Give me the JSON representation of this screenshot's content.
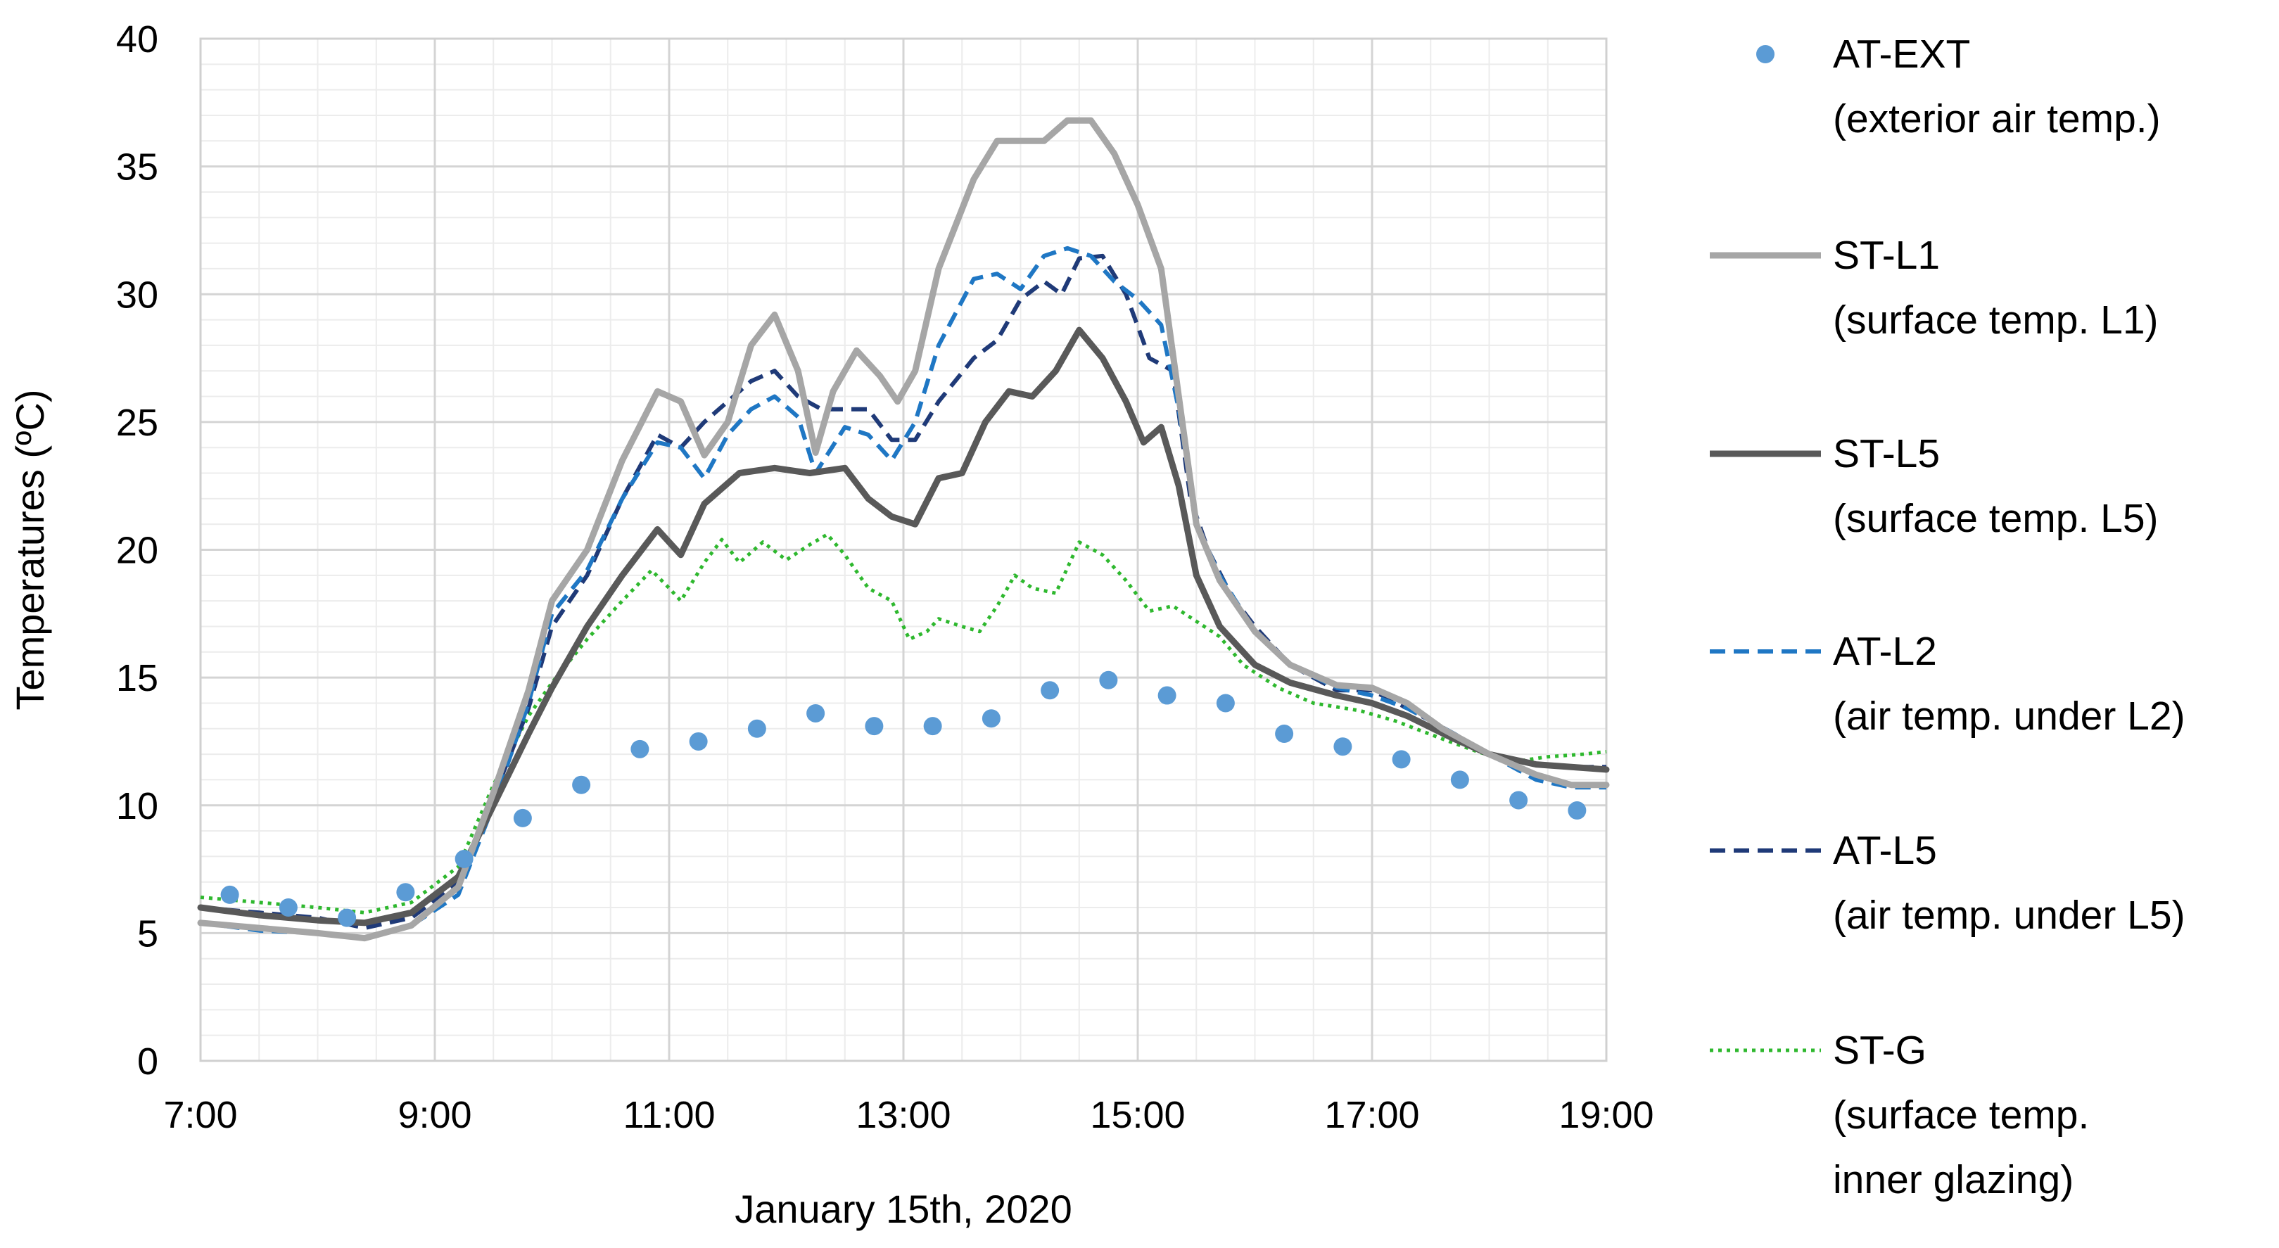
{
  "chart_data": {
    "type": "line",
    "xlabel": "January 15th, 2020",
    "ylabel": "Temperatures (ºC)",
    "xlim": [
      7,
      19
    ],
    "ylim": [
      0,
      40
    ],
    "x_ticks": [
      7,
      9,
      11,
      13,
      15,
      17,
      19
    ],
    "x_tick_labels": [
      "7:00",
      "9:00",
      "11:00",
      "13:00",
      "15:00",
      "17:00",
      "19:00"
    ],
    "y_ticks": [
      0,
      5,
      10,
      15,
      20,
      25,
      30,
      35,
      40
    ],
    "y_tick_labels": [
      "0",
      "5",
      "10",
      "15",
      "20",
      "25",
      "30",
      "35",
      "40"
    ],
    "grid": true,
    "legend_position": "right",
    "series": [
      {
        "name": "AT-EXT",
        "legend_lines": [
          "AT-EXT",
          "(exterior air temp.)"
        ],
        "style": "dots",
        "color": "#5b9bd5",
        "points": [
          [
            7.25,
            6.5
          ],
          [
            7.75,
            6.0
          ],
          [
            8.25,
            5.6
          ],
          [
            8.75,
            6.6
          ],
          [
            9.25,
            7.9
          ],
          [
            9.75,
            9.5
          ],
          [
            10.25,
            10.8
          ],
          [
            10.75,
            12.2
          ],
          [
            11.25,
            12.5
          ],
          [
            11.75,
            13.0
          ],
          [
            12.25,
            13.6
          ],
          [
            12.75,
            13.1
          ],
          [
            13.25,
            13.1
          ],
          [
            13.75,
            13.4
          ],
          [
            14.25,
            14.5
          ],
          [
            14.75,
            14.9
          ],
          [
            15.25,
            14.3
          ],
          [
            15.75,
            14.0
          ],
          [
            16.25,
            12.8
          ],
          [
            16.75,
            12.3
          ],
          [
            17.25,
            11.8
          ],
          [
            17.75,
            11.0
          ],
          [
            18.25,
            10.2
          ],
          [
            18.75,
            9.8
          ]
        ]
      },
      {
        "name": "ST-L1",
        "legend_lines": [
          "ST-L1",
          "(surface temp. L1)"
        ],
        "style": "solid",
        "color": "#a6a6a6",
        "points": [
          [
            7,
            5.4
          ],
          [
            7.5,
            5.2
          ],
          [
            8,
            5.0
          ],
          [
            8.4,
            4.8
          ],
          [
            8.8,
            5.3
          ],
          [
            9.2,
            6.8
          ],
          [
            9.5,
            10.5
          ],
          [
            9.8,
            14.5
          ],
          [
            10,
            18.0
          ],
          [
            10.3,
            20.0
          ],
          [
            10.6,
            23.5
          ],
          [
            10.9,
            26.2
          ],
          [
            11.1,
            25.8
          ],
          [
            11.3,
            23.7
          ],
          [
            11.5,
            25.0
          ],
          [
            11.7,
            28.0
          ],
          [
            11.9,
            29.2
          ],
          [
            12.1,
            27.0
          ],
          [
            12.25,
            23.8
          ],
          [
            12.4,
            26.2
          ],
          [
            12.6,
            27.8
          ],
          [
            12.8,
            26.8
          ],
          [
            12.95,
            25.8
          ],
          [
            13.1,
            27.0
          ],
          [
            13.3,
            31.0
          ],
          [
            13.6,
            34.5
          ],
          [
            13.8,
            36.0
          ],
          [
            14.0,
            36.0
          ],
          [
            14.2,
            36.0
          ],
          [
            14.4,
            36.8
          ],
          [
            14.6,
            36.8
          ],
          [
            14.8,
            35.5
          ],
          [
            15.0,
            33.5
          ],
          [
            15.2,
            31.0
          ],
          [
            15.35,
            26.0
          ],
          [
            15.5,
            21.0
          ],
          [
            15.7,
            18.8
          ],
          [
            16.0,
            16.8
          ],
          [
            16.3,
            15.5
          ],
          [
            16.7,
            14.7
          ],
          [
            17.0,
            14.6
          ],
          [
            17.3,
            14.0
          ],
          [
            17.6,
            13.0
          ],
          [
            18.0,
            12.0
          ],
          [
            18.4,
            11.2
          ],
          [
            18.7,
            10.8
          ],
          [
            19,
            10.8
          ]
        ]
      },
      {
        "name": "ST-L5",
        "legend_lines": [
          "ST-L5",
          "(surface temp. L5)"
        ],
        "style": "solid",
        "color": "#595959",
        "points": [
          [
            7,
            6.0
          ],
          [
            7.5,
            5.7
          ],
          [
            8,
            5.5
          ],
          [
            8.4,
            5.4
          ],
          [
            8.8,
            5.8
          ],
          [
            9.2,
            7.2
          ],
          [
            9.5,
            10.0
          ],
          [
            9.8,
            12.8
          ],
          [
            10,
            14.6
          ],
          [
            10.3,
            17.0
          ],
          [
            10.6,
            19.0
          ],
          [
            10.9,
            20.8
          ],
          [
            11.1,
            19.8
          ],
          [
            11.3,
            21.8
          ],
          [
            11.6,
            23.0
          ],
          [
            11.9,
            23.2
          ],
          [
            12.2,
            23.0
          ],
          [
            12.5,
            23.2
          ],
          [
            12.7,
            22.0
          ],
          [
            12.9,
            21.3
          ],
          [
            13.1,
            21.0
          ],
          [
            13.3,
            22.8
          ],
          [
            13.5,
            23.0
          ],
          [
            13.7,
            25.0
          ],
          [
            13.9,
            26.2
          ],
          [
            14.1,
            26.0
          ],
          [
            14.3,
            27.0
          ],
          [
            14.5,
            28.6
          ],
          [
            14.7,
            27.5
          ],
          [
            14.9,
            25.8
          ],
          [
            15.05,
            24.2
          ],
          [
            15.2,
            24.8
          ],
          [
            15.35,
            22.5
          ],
          [
            15.5,
            19.0
          ],
          [
            15.7,
            17.0
          ],
          [
            16.0,
            15.5
          ],
          [
            16.3,
            14.8
          ],
          [
            16.7,
            14.3
          ],
          [
            17.0,
            14.0
          ],
          [
            17.3,
            13.5
          ],
          [
            17.7,
            12.6
          ],
          [
            18.0,
            12.0
          ],
          [
            18.4,
            11.6
          ],
          [
            18.7,
            11.5
          ],
          [
            19,
            11.4
          ]
        ]
      },
      {
        "name": "AT-L2",
        "legend_lines": [
          "AT-L2",
          "(air temp. under L2)"
        ],
        "style": "dashed",
        "color": "#1f77c4",
        "points": [
          [
            7,
            5.4
          ],
          [
            7.5,
            5.1
          ],
          [
            8,
            5.0
          ],
          [
            8.4,
            4.8
          ],
          [
            8.8,
            5.3
          ],
          [
            9.2,
            6.5
          ],
          [
            9.5,
            10.0
          ],
          [
            9.8,
            14.0
          ],
          [
            10,
            17.5
          ],
          [
            10.3,
            19.2
          ],
          [
            10.6,
            22.0
          ],
          [
            10.9,
            24.2
          ],
          [
            11.1,
            24.0
          ],
          [
            11.3,
            22.8
          ],
          [
            11.5,
            24.5
          ],
          [
            11.7,
            25.5
          ],
          [
            11.9,
            26.0
          ],
          [
            12.1,
            25.2
          ],
          [
            12.25,
            23.0
          ],
          [
            12.5,
            24.8
          ],
          [
            12.7,
            24.5
          ],
          [
            12.9,
            23.5
          ],
          [
            13.1,
            25.0
          ],
          [
            13.3,
            28.0
          ],
          [
            13.6,
            30.6
          ],
          [
            13.8,
            30.8
          ],
          [
            14.0,
            30.2
          ],
          [
            14.2,
            31.5
          ],
          [
            14.4,
            31.8
          ],
          [
            14.6,
            31.5
          ],
          [
            14.8,
            30.5
          ],
          [
            15.0,
            29.8
          ],
          [
            15.2,
            28.8
          ],
          [
            15.35,
            25.5
          ],
          [
            15.5,
            21.0
          ],
          [
            15.7,
            19.0
          ],
          [
            16.0,
            16.8
          ],
          [
            16.3,
            15.5
          ],
          [
            16.7,
            14.6
          ],
          [
            17.0,
            14.3
          ],
          [
            17.3,
            13.8
          ],
          [
            17.7,
            12.8
          ],
          [
            18.0,
            12.0
          ],
          [
            18.4,
            11.0
          ],
          [
            18.7,
            10.7
          ],
          [
            19,
            10.7
          ]
        ]
      },
      {
        "name": "AT-L5",
        "legend_lines": [
          "AT-L5",
          "(air temp. under L5)"
        ],
        "style": "dashed",
        "color": "#1f3a78",
        "points": [
          [
            7,
            6.0
          ],
          [
            7.5,
            5.8
          ],
          [
            8,
            5.6
          ],
          [
            8.4,
            5.2
          ],
          [
            8.8,
            5.6
          ],
          [
            9.2,
            7.0
          ],
          [
            9.5,
            10.3
          ],
          [
            9.8,
            13.8
          ],
          [
            10,
            17.0
          ],
          [
            10.3,
            19.0
          ],
          [
            10.6,
            22.0
          ],
          [
            10.9,
            24.5
          ],
          [
            11.1,
            24.0
          ],
          [
            11.3,
            25.0
          ],
          [
            11.5,
            25.8
          ],
          [
            11.7,
            26.6
          ],
          [
            11.9,
            27.0
          ],
          [
            12.1,
            26.0
          ],
          [
            12.3,
            25.5
          ],
          [
            12.5,
            25.5
          ],
          [
            12.7,
            25.5
          ],
          [
            12.9,
            24.3
          ],
          [
            13.1,
            24.3
          ],
          [
            13.3,
            25.8
          ],
          [
            13.6,
            27.5
          ],
          [
            13.8,
            28.2
          ],
          [
            14.0,
            29.8
          ],
          [
            14.2,
            30.5
          ],
          [
            14.35,
            30.0
          ],
          [
            14.5,
            31.4
          ],
          [
            14.7,
            31.5
          ],
          [
            14.9,
            30.0
          ],
          [
            15.1,
            27.5
          ],
          [
            15.3,
            27.0
          ],
          [
            15.45,
            22.0
          ],
          [
            15.6,
            20.0
          ],
          [
            15.8,
            18.2
          ],
          [
            16.0,
            17.0
          ],
          [
            16.3,
            15.5
          ],
          [
            16.7,
            14.5
          ],
          [
            17.0,
            14.5
          ],
          [
            17.3,
            13.8
          ],
          [
            17.7,
            12.8
          ],
          [
            18.0,
            12.0
          ],
          [
            18.4,
            11.6
          ],
          [
            18.7,
            11.5
          ],
          [
            19,
            11.5
          ]
        ]
      },
      {
        "name": "ST-G",
        "legend_lines": [
          "ST-G",
          "(surface temp.",
          "inner glazing)"
        ],
        "style": "dotted",
        "color": "#2eb82e",
        "points": [
          [
            7,
            6.4
          ],
          [
            7.5,
            6.2
          ],
          [
            8,
            6.0
          ],
          [
            8.4,
            5.8
          ],
          [
            8.8,
            6.2
          ],
          [
            9.2,
            7.6
          ],
          [
            9.5,
            10.8
          ],
          [
            9.8,
            13.5
          ],
          [
            10,
            14.8
          ],
          [
            10.3,
            16.5
          ],
          [
            10.6,
            18.0
          ],
          [
            10.85,
            19.2
          ],
          [
            11.0,
            18.5
          ],
          [
            11.1,
            18.0
          ],
          [
            11.3,
            19.5
          ],
          [
            11.45,
            20.4
          ],
          [
            11.6,
            19.5
          ],
          [
            11.8,
            20.3
          ],
          [
            12.0,
            19.6
          ],
          [
            12.2,
            20.2
          ],
          [
            12.35,
            20.6
          ],
          [
            12.5,
            19.8
          ],
          [
            12.7,
            18.5
          ],
          [
            12.9,
            18.0
          ],
          [
            13.05,
            16.5
          ],
          [
            13.2,
            16.8
          ],
          [
            13.3,
            17.3
          ],
          [
            13.5,
            17.0
          ],
          [
            13.65,
            16.8
          ],
          [
            13.8,
            17.8
          ],
          [
            13.95,
            19.0
          ],
          [
            14.1,
            18.5
          ],
          [
            14.3,
            18.3
          ],
          [
            14.5,
            20.3
          ],
          [
            14.7,
            19.8
          ],
          [
            14.9,
            18.8
          ],
          [
            15.1,
            17.6
          ],
          [
            15.3,
            17.8
          ],
          [
            15.5,
            17.2
          ],
          [
            15.7,
            16.6
          ],
          [
            15.9,
            15.5
          ],
          [
            16.2,
            14.6
          ],
          [
            16.5,
            14.0
          ],
          [
            16.9,
            13.7
          ],
          [
            17.2,
            13.3
          ],
          [
            17.6,
            12.6
          ],
          [
            17.9,
            12.1
          ],
          [
            18.2,
            11.7
          ],
          [
            18.5,
            11.9
          ],
          [
            18.8,
            12.0
          ],
          [
            19,
            12.1
          ]
        ]
      }
    ]
  }
}
